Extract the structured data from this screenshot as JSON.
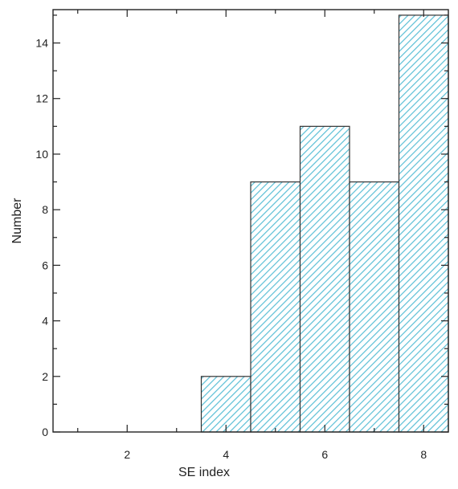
{
  "chart_data": {
    "type": "bar",
    "subtype": "histogram",
    "xlabel": "SE index",
    "ylabel": "Number",
    "xlim": [
      0.5,
      8.5
    ],
    "ylim": [
      0,
      15.2
    ],
    "bin_width": 1,
    "bins": [
      {
        "center": 4,
        "value": 2
      },
      {
        "center": 5,
        "value": 9
      },
      {
        "center": 6,
        "value": 11
      },
      {
        "center": 7,
        "value": 9
      },
      {
        "center": 8,
        "value": 15
      }
    ],
    "x_ticks": [
      2,
      4,
      6,
      8
    ],
    "y_ticks": [
      0,
      2,
      4,
      6,
      8,
      10,
      12,
      14
    ],
    "fill": "hatched",
    "colors": {
      "hatch": "#5bbfd6",
      "bar_edge": "#333333",
      "axis": "#222222"
    },
    "grid": false
  }
}
